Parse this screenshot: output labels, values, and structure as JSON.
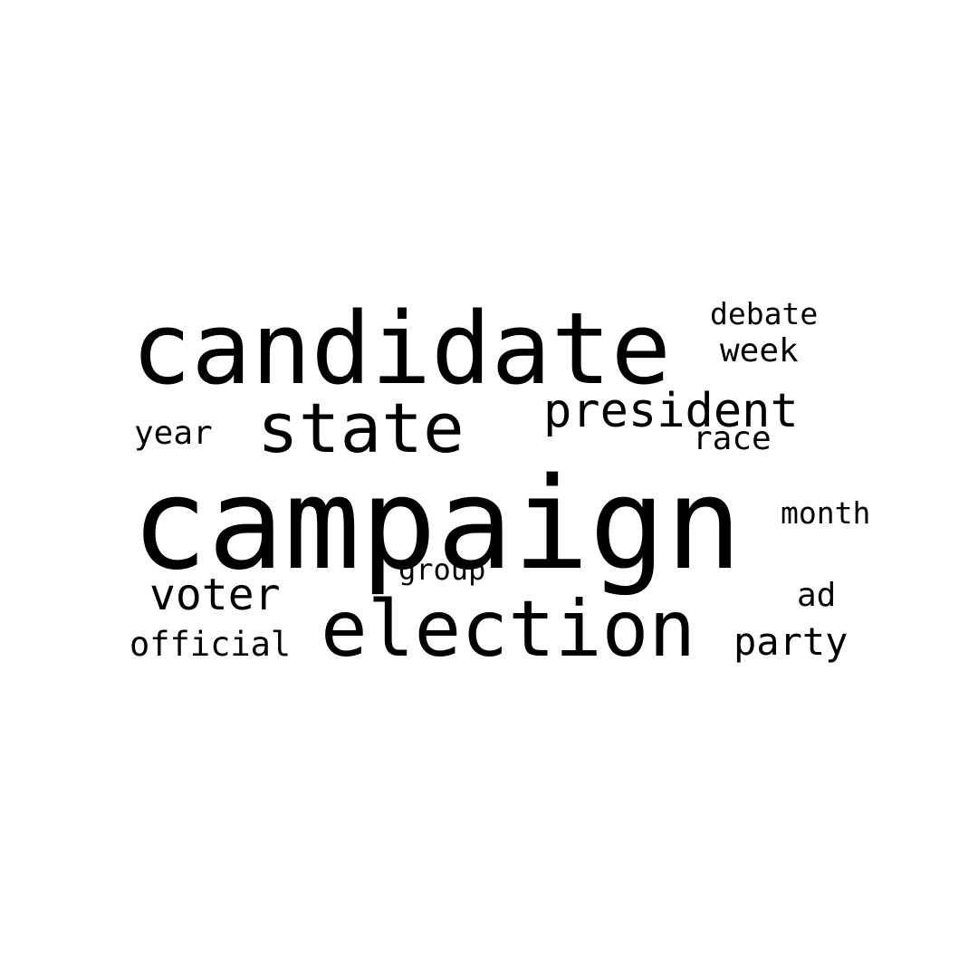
{
  "word_cloud": {
    "text_color": "#000000",
    "background_color": "#ffffff",
    "words": {
      "campaign": "campaign",
      "candidate": "candidate",
      "election": "election",
      "state": "state",
      "president": "president",
      "voter": "voter",
      "party": "party",
      "official": "official",
      "debate": "debate",
      "week": "week",
      "race": "race",
      "year": "year",
      "month": "month",
      "group": "group",
      "ad": "ad"
    }
  }
}
